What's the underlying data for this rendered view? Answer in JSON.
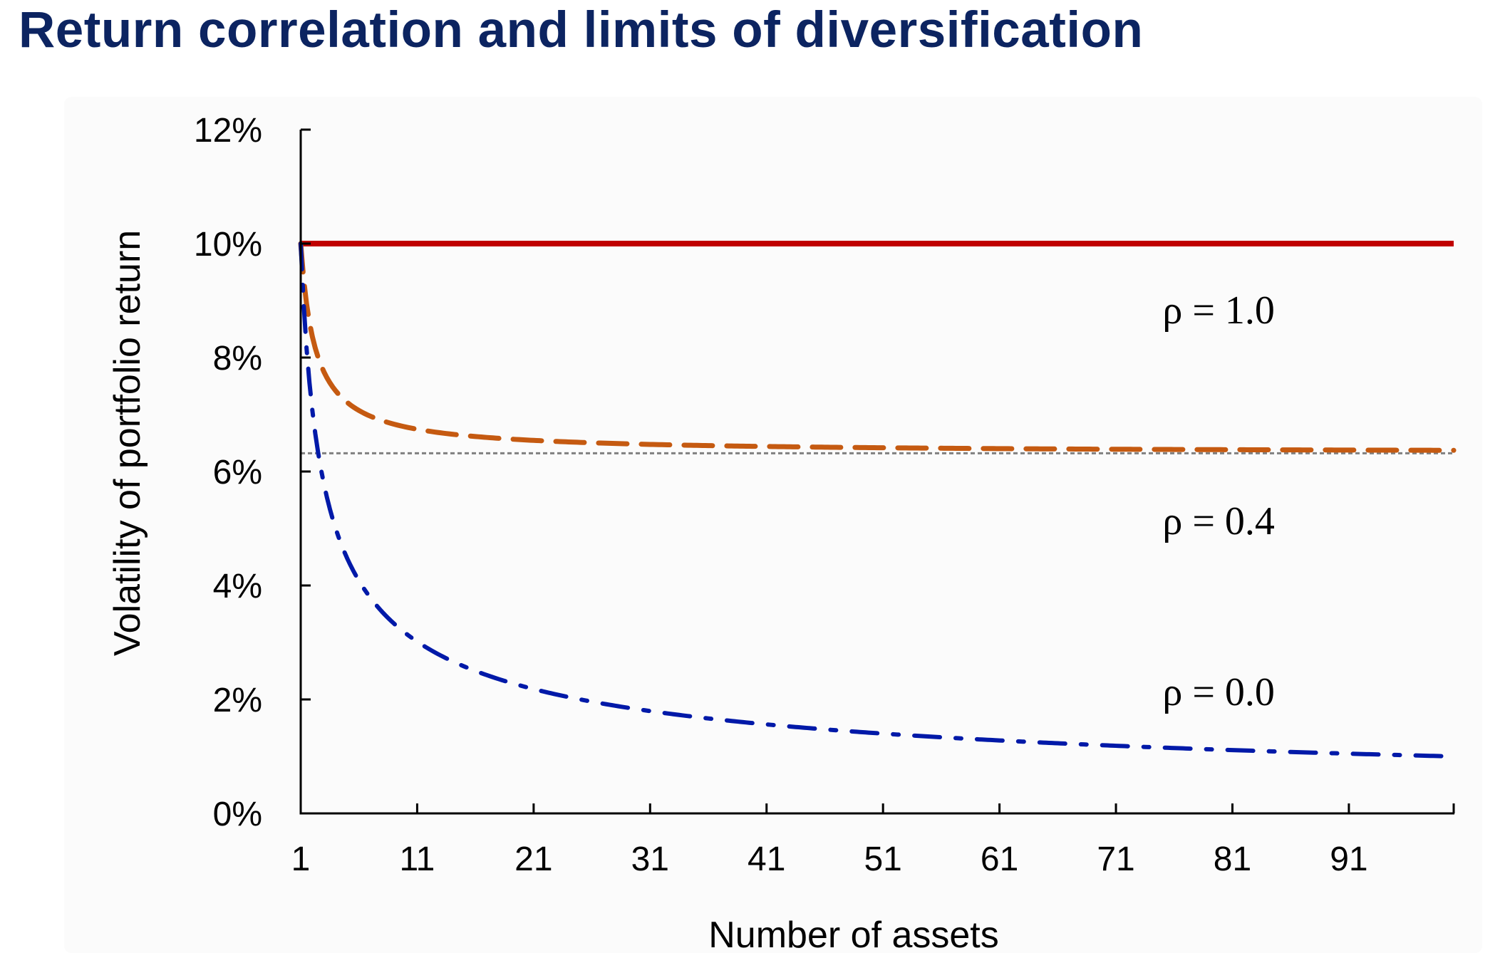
{
  "title": "Return correlation and limits of diversification",
  "chart_data": {
    "type": "line",
    "xlabel": "Number of assets",
    "ylabel": "Volatility of portfolio return",
    "xlim": [
      1,
      100
    ],
    "ylim": [
      0,
      12
    ],
    "x_ticks": [
      1,
      11,
      21,
      31,
      41,
      51,
      61,
      71,
      81,
      91
    ],
    "y_ticks": [
      0,
      2,
      4,
      6,
      8,
      10,
      12
    ],
    "y_tick_labels": [
      "0%",
      "2%",
      "4%",
      "6%",
      "8%",
      "10%",
      "12%"
    ],
    "asset_volatility_pct": 10,
    "reference_line": {
      "y": 6.32,
      "color": "#808080",
      "style": "dotted"
    },
    "series": [
      {
        "label": "ρ = 1.0",
        "rho": 1.0,
        "color": "#c00000",
        "style": "solid",
        "label_x": 75,
        "label_y": 8.6
      },
      {
        "label": "ρ = 0.4",
        "rho": 0.4,
        "color": "#c55a11",
        "style": "dashed",
        "label_x": 75,
        "label_y": 4.9
      },
      {
        "label": "ρ = 0.0",
        "rho": 0.0,
        "color": "#0019a8",
        "style": "dashdot",
        "label_x": 75,
        "label_y": 1.9
      }
    ],
    "grid": false,
    "legend": "inline labels"
  }
}
